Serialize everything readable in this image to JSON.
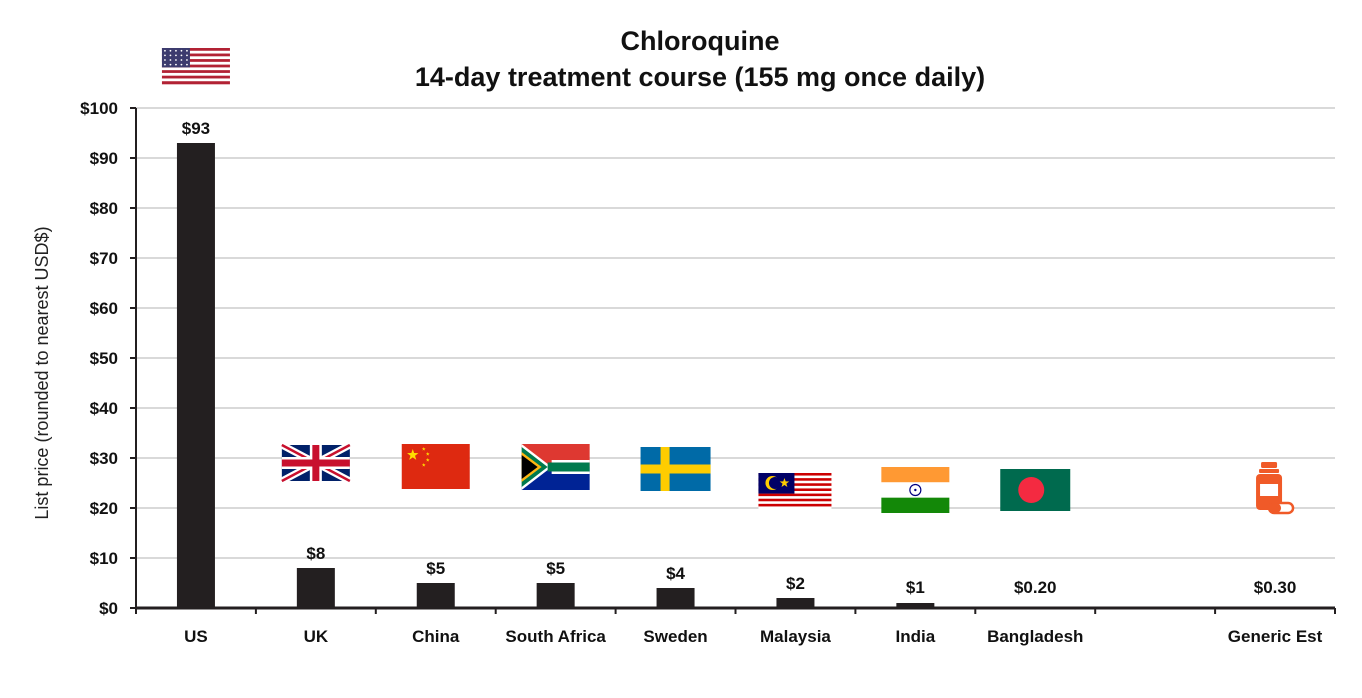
{
  "chart_data": {
    "type": "bar",
    "title": "Chloroquine",
    "subtitle": "14-day treatment course (155 mg once daily)",
    "ylabel": "List price (rounded to nearest USD$)",
    "xlabel": "",
    "ylim": [
      0,
      100
    ],
    "ytick_labels": [
      "$0",
      "$10",
      "$20",
      "$30",
      "$40",
      "$50",
      "$60",
      "$70",
      "$80",
      "$90",
      "$100"
    ],
    "grid": true,
    "categories": [
      "US",
      "UK",
      "China",
      "South Africa",
      "Sweden",
      "Malaysia",
      "India",
      "Bangladesh",
      "",
      "Generic Est"
    ],
    "values": [
      93,
      8,
      5,
      5,
      4,
      2,
      1,
      0.2,
      null,
      0.3
    ],
    "data_labels": [
      "$93",
      "$8",
      "$5",
      "$5",
      "$4",
      "$2",
      "$1",
      "$0.20",
      "",
      "$0.30"
    ],
    "icons": [
      "us-flag-icon",
      "uk-flag-icon",
      "china-flag-icon",
      "south-africa-flag-icon",
      "sweden-flag-icon",
      "malaysia-flag-icon",
      "india-flag-icon",
      "bangladesh-flag-icon",
      "",
      "medicine-bottle-icon"
    ],
    "colors": {
      "bar": "#231f20",
      "grid": "#d9d9d9",
      "axis": "#231f20",
      "icon_orange": "#f05a28"
    }
  }
}
